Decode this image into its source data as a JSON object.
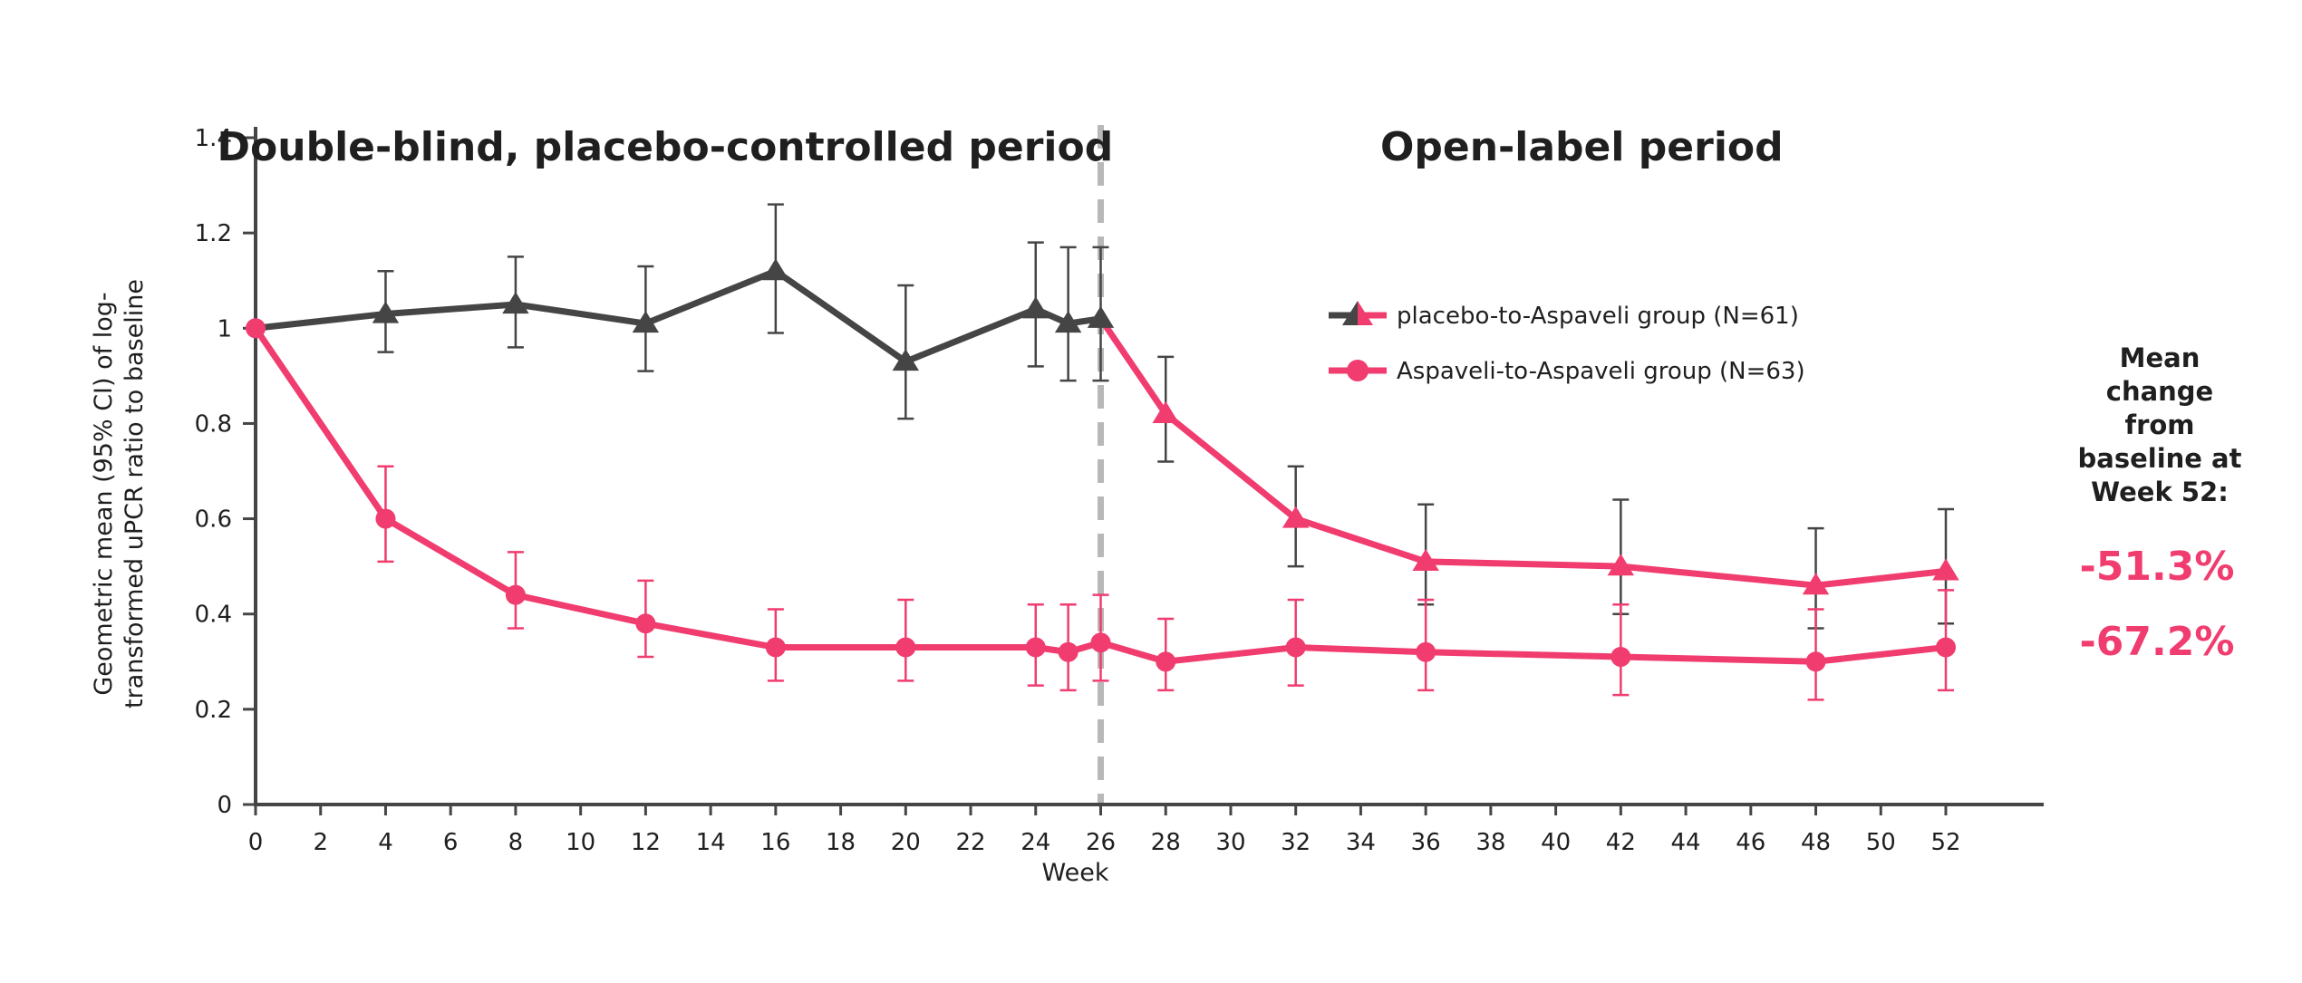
{
  "chart_data": {
    "type": "line",
    "xlabel": "Week",
    "ylabel_lines": [
      "Geometric mean (95% CI) of log-",
      "transformed uPCR ratio to baseline"
    ],
    "xlim": [
      0,
      52
    ],
    "ylim": [
      0,
      1.4
    ],
    "x_ticks": [
      0,
      2,
      4,
      6,
      8,
      10,
      12,
      14,
      16,
      18,
      20,
      22,
      24,
      26,
      28,
      30,
      32,
      34,
      36,
      38,
      40,
      42,
      44,
      46,
      48,
      50,
      52
    ],
    "y_ticks": [
      {
        "value": 0,
        "label": "0"
      },
      {
        "value": 0.2,
        "label": "0.2"
      },
      {
        "value": 0.4,
        "label": "0.4"
      },
      {
        "value": 0.6,
        "label": "0.6"
      },
      {
        "value": 0.8,
        "label": "0.8"
      },
      {
        "value": 1.0,
        "label": "1"
      },
      {
        "value": 1.2,
        "label": "1.2"
      },
      {
        "value": 1.4,
        "label": "1.4"
      }
    ],
    "period_divider_week": 26,
    "periods": [
      {
        "label": "Double-blind, placebo-controlled period",
        "center_week": 12.6
      },
      {
        "label": "Open-label period",
        "center_week": 40.8
      }
    ],
    "series": [
      {
        "name": "placebo-to-Aspaveli group (N=61)",
        "marker": "triangle",
        "color_before": "#454545",
        "color_after": "#f03c6e",
        "switch_week": 26,
        "points": [
          {
            "x": 0,
            "y": 1.0,
            "lo": null,
            "hi": null
          },
          {
            "x": 4,
            "y": 1.03,
            "lo": 0.95,
            "hi": 1.12
          },
          {
            "x": 8,
            "y": 1.05,
            "lo": 0.96,
            "hi": 1.15
          },
          {
            "x": 12,
            "y": 1.01,
            "lo": 0.91,
            "hi": 1.13
          },
          {
            "x": 16,
            "y": 1.12,
            "lo": 0.99,
            "hi": 1.26
          },
          {
            "x": 20,
            "y": 0.93,
            "lo": 0.81,
            "hi": 1.09
          },
          {
            "x": 24,
            "y": 1.04,
            "lo": 0.92,
            "hi": 1.18
          },
          {
            "x": 25,
            "y": 1.01,
            "lo": 0.89,
            "hi": 1.17
          },
          {
            "x": 26,
            "y": 1.02,
            "lo": 0.89,
            "hi": 1.17
          },
          {
            "x": 28,
            "y": 0.82,
            "lo": 0.72,
            "hi": 0.94
          },
          {
            "x": 32,
            "y": 0.6,
            "lo": 0.5,
            "hi": 0.71
          },
          {
            "x": 36,
            "y": 0.51,
            "lo": 0.42,
            "hi": 0.63
          },
          {
            "x": 42,
            "y": 0.5,
            "lo": 0.4,
            "hi": 0.64
          },
          {
            "x": 48,
            "y": 0.46,
            "lo": 0.37,
            "hi": 0.58
          },
          {
            "x": 52,
            "y": 0.49,
            "lo": 0.38,
            "hi": 0.62
          }
        ]
      },
      {
        "name": "Aspaveli-to-Aspaveli group (N=63)",
        "marker": "circle",
        "color": "#f03c6e",
        "points": [
          {
            "x": 0,
            "y": 1.0,
            "lo": null,
            "hi": null
          },
          {
            "x": 4,
            "y": 0.6,
            "lo": 0.51,
            "hi": 0.71
          },
          {
            "x": 8,
            "y": 0.44,
            "lo": 0.37,
            "hi": 0.53
          },
          {
            "x": 12,
            "y": 0.38,
            "lo": 0.31,
            "hi": 0.47
          },
          {
            "x": 16,
            "y": 0.33,
            "lo": 0.26,
            "hi": 0.41
          },
          {
            "x": 20,
            "y": 0.33,
            "lo": 0.26,
            "hi": 0.43
          },
          {
            "x": 24,
            "y": 0.33,
            "lo": 0.25,
            "hi": 0.42
          },
          {
            "x": 25,
            "y": 0.32,
            "lo": 0.24,
            "hi": 0.42
          },
          {
            "x": 26,
            "y": 0.34,
            "lo": 0.26,
            "hi": 0.44
          },
          {
            "x": 28,
            "y": 0.3,
            "lo": 0.24,
            "hi": 0.39
          },
          {
            "x": 32,
            "y": 0.33,
            "lo": 0.25,
            "hi": 0.43
          },
          {
            "x": 36,
            "y": 0.32,
            "lo": 0.24,
            "hi": 0.43
          },
          {
            "x": 42,
            "y": 0.31,
            "lo": 0.23,
            "hi": 0.42
          },
          {
            "x": 48,
            "y": 0.3,
            "lo": 0.22,
            "hi": 0.41
          },
          {
            "x": 52,
            "y": 0.33,
            "lo": 0.24,
            "hi": 0.45
          }
        ]
      }
    ],
    "legend": {
      "position": "top-right"
    },
    "grid": false,
    "annotation": {
      "heading_lines": [
        "Mean",
        "change",
        "from",
        "baseline at",
        "Week 52:"
      ],
      "values": [
        {
          "text": "-51.3%",
          "color": "#f03c6e"
        },
        {
          "text": "-67.2%",
          "color": "#f03c6e"
        }
      ]
    },
    "colors": {
      "axis": "#454545",
      "divider": "#b8b8b8",
      "text": "#1f1f1f"
    }
  }
}
